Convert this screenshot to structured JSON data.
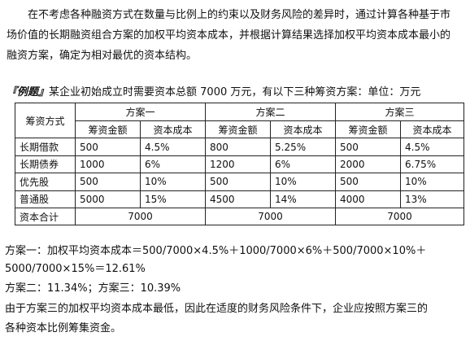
{
  "intro": "在不考虑各种融资方式在数量与比例上的约束以及财务风险的差异时，通过计算各种基于市场价值的长期融资组合方案的加权平均资本成本，并根据计算结果选择加权平均资本成本最小的融资方案，确定为相对最优的资本结构。",
  "example": {
    "label": "『例题』",
    "text": "某企业初始成立时需要资本总额 7000 万元，有以下三种筹资方案：单位：万元"
  },
  "table": {
    "col0_header": "筹资方式",
    "plans": [
      "方案一",
      "方案二",
      "方案三"
    ],
    "sub_headers": [
      "筹资金额",
      "资本成本"
    ],
    "rows": [
      {
        "name": "长期借款",
        "cells": [
          "500",
          "4.5%",
          "800",
          "5.25%",
          "500",
          "4.5%"
        ]
      },
      {
        "name": "长期债券",
        "cells": [
          "1000",
          "6%",
          "1200",
          "6%",
          "2000",
          "6.75%"
        ]
      },
      {
        "name": "优先股",
        "cells": [
          "500",
          "10%",
          "500",
          "10%",
          "500",
          "10%"
        ]
      },
      {
        "name": "普通股",
        "cells": [
          "5000",
          "15%",
          "4500",
          "14%",
          "4000",
          "13%"
        ]
      }
    ],
    "total_label": "资本合计",
    "totals": [
      "7000",
      "7000",
      "7000"
    ]
  },
  "calc": {
    "line1": "方案一：加权平均资本成本＝500/7000×4.5%＋1000/7000×6%＋500/7000×10%＋",
    "line2": "5000/7000×15%＝12.61%",
    "line3": "方案二：11.34%；方案三：10.39%",
    "line4": "由于方案三的加权平均资本成本最低，因此在适度的财务风险条件下，企业应按照方案三的",
    "line5": "各种资本比例筹集资金。"
  }
}
